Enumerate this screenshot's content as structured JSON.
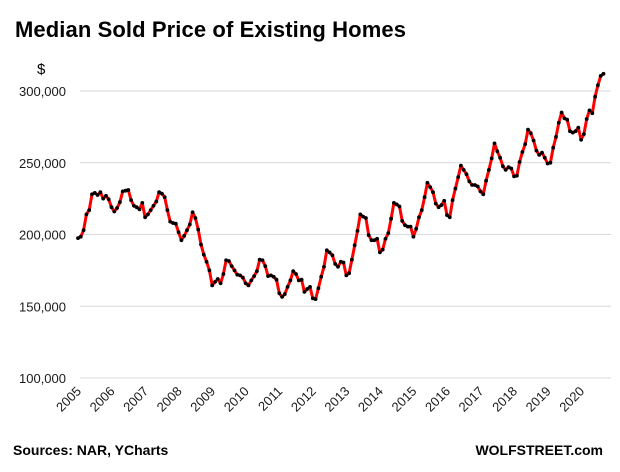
{
  "chart_data": {
    "type": "line",
    "title": "Median Sold Price of Existing Homes",
    "y_unit_label": "$",
    "ylim": [
      100000,
      300000
    ],
    "y_ticks": [
      100000,
      150000,
      200000,
      250000,
      300000
    ],
    "y_tick_labels": [
      "100,000",
      "150,000",
      "200,000",
      "250,000",
      "300,000"
    ],
    "x_tick_labels": [
      "2005",
      "2006",
      "2007",
      "2008",
      "2009",
      "2010",
      "2011",
      "2012",
      "2013",
      "2014",
      "2015",
      "2016",
      "2017",
      "2018",
      "2019",
      "2020"
    ],
    "grid": "horizontal",
    "legend": "none",
    "series": [
      {
        "line_color": "#ff0000",
        "marker_color": "#000000",
        "points": [
          [
            "2005-01",
            197500
          ],
          [
            "2005-02",
            198500
          ],
          [
            "2005-03",
            203000
          ],
          [
            "2005-04",
            214000
          ],
          [
            "2005-05",
            217000
          ],
          [
            "2005-06",
            228000
          ],
          [
            "2005-07",
            229000
          ],
          [
            "2005-08",
            227500
          ],
          [
            "2005-09",
            229500
          ],
          [
            "2005-10",
            225000
          ],
          [
            "2005-11",
            227000
          ],
          [
            "2005-12",
            224500
          ],
          [
            "2006-01",
            219000
          ],
          [
            "2006-02",
            216000
          ],
          [
            "2006-03",
            218500
          ],
          [
            "2006-04",
            222500
          ],
          [
            "2006-05",
            230000
          ],
          [
            "2006-06",
            230500
          ],
          [
            "2006-07",
            231000
          ],
          [
            "2006-08",
            224000
          ],
          [
            "2006-09",
            220000
          ],
          [
            "2006-10",
            219000
          ],
          [
            "2006-11",
            217500
          ],
          [
            "2006-12",
            222000
          ],
          [
            "2007-01",
            212000
          ],
          [
            "2007-02",
            214000
          ],
          [
            "2007-03",
            217000
          ],
          [
            "2007-04",
            220000
          ],
          [
            "2007-05",
            223000
          ],
          [
            "2007-06",
            229500
          ],
          [
            "2007-07",
            228500
          ],
          [
            "2007-08",
            226000
          ],
          [
            "2007-09",
            217000
          ],
          [
            "2007-10",
            209000
          ],
          [
            "2007-11",
            208000
          ],
          [
            "2007-12",
            207500
          ],
          [
            "2008-01",
            201500
          ],
          [
            "2008-02",
            196000
          ],
          [
            "2008-03",
            199000
          ],
          [
            "2008-04",
            203000
          ],
          [
            "2008-05",
            207000
          ],
          [
            "2008-06",
            215500
          ],
          [
            "2008-07",
            211500
          ],
          [
            "2008-08",
            203500
          ],
          [
            "2008-09",
            193000
          ],
          [
            "2008-10",
            186000
          ],
          [
            "2008-11",
            181000
          ],
          [
            "2008-12",
            175000
          ],
          [
            "2009-01",
            164500
          ],
          [
            "2009-02",
            167000
          ],
          [
            "2009-03",
            169000
          ],
          [
            "2009-04",
            166000
          ],
          [
            "2009-05",
            172500
          ],
          [
            "2009-06",
            182000
          ],
          [
            "2009-07",
            181500
          ],
          [
            "2009-08",
            178000
          ],
          [
            "2009-09",
            175000
          ],
          [
            "2009-10",
            172000
          ],
          [
            "2009-11",
            171500
          ],
          [
            "2009-12",
            170000
          ],
          [
            "2010-01",
            166000
          ],
          [
            "2010-02",
            164500
          ],
          [
            "2010-03",
            168000
          ],
          [
            "2010-04",
            171000
          ],
          [
            "2010-05",
            174500
          ],
          [
            "2010-06",
            182500
          ],
          [
            "2010-07",
            182000
          ],
          [
            "2010-08",
            178000
          ],
          [
            "2010-09",
            171000
          ],
          [
            "2010-10",
            171500
          ],
          [
            "2010-11",
            170500
          ],
          [
            "2010-12",
            168500
          ],
          [
            "2011-01",
            159000
          ],
          [
            "2011-02",
            156500
          ],
          [
            "2011-03",
            158500
          ],
          [
            "2011-04",
            163500
          ],
          [
            "2011-05",
            168000
          ],
          [
            "2011-06",
            174500
          ],
          [
            "2011-07",
            172500
          ],
          [
            "2011-08",
            168000
          ],
          [
            "2011-09",
            168500
          ],
          [
            "2011-10",
            160000
          ],
          [
            "2011-11",
            162000
          ],
          [
            "2011-12",
            163500
          ],
          [
            "2012-01",
            155500
          ],
          [
            "2012-02",
            155000
          ],
          [
            "2012-03",
            162500
          ],
          [
            "2012-04",
            170500
          ],
          [
            "2012-05",
            177500
          ],
          [
            "2012-06",
            189000
          ],
          [
            "2012-07",
            187500
          ],
          [
            "2012-08",
            185500
          ],
          [
            "2012-09",
            179500
          ],
          [
            "2012-10",
            177500
          ],
          [
            "2012-11",
            181000
          ],
          [
            "2012-12",
            180500
          ],
          [
            "2013-01",
            171500
          ],
          [
            "2013-02",
            173000
          ],
          [
            "2013-03",
            182500
          ],
          [
            "2013-04",
            192500
          ],
          [
            "2013-05",
            202500
          ],
          [
            "2013-06",
            214000
          ],
          [
            "2013-07",
            212500
          ],
          [
            "2013-08",
            211500
          ],
          [
            "2013-09",
            199500
          ],
          [
            "2013-10",
            196000
          ],
          [
            "2013-11",
            196000
          ],
          [
            "2013-12",
            197000
          ],
          [
            "2014-01",
            187500
          ],
          [
            "2014-02",
            189500
          ],
          [
            "2014-03",
            197000
          ],
          [
            "2014-04",
            201000
          ],
          [
            "2014-05",
            211000
          ],
          [
            "2014-06",
            222000
          ],
          [
            "2014-07",
            221000
          ],
          [
            "2014-08",
            219500
          ],
          [
            "2014-09",
            209500
          ],
          [
            "2014-10",
            206500
          ],
          [
            "2014-11",
            205500
          ],
          [
            "2014-12",
            205500
          ],
          [
            "2015-01",
            198500
          ],
          [
            "2015-02",
            204000
          ],
          [
            "2015-03",
            212000
          ],
          [
            "2015-04",
            217000
          ],
          [
            "2015-05",
            226000
          ],
          [
            "2015-06",
            236000
          ],
          [
            "2015-07",
            233000
          ],
          [
            "2015-08",
            229500
          ],
          [
            "2015-09",
            221500
          ],
          [
            "2015-10",
            219000
          ],
          [
            "2015-11",
            220500
          ],
          [
            "2015-12",
            223500
          ],
          [
            "2016-01",
            213500
          ],
          [
            "2016-02",
            212000
          ],
          [
            "2016-03",
            224000
          ],
          [
            "2016-04",
            232000
          ],
          [
            "2016-05",
            240000
          ],
          [
            "2016-06",
            248000
          ],
          [
            "2016-07",
            245000
          ],
          [
            "2016-08",
            242000
          ],
          [
            "2016-09",
            237000
          ],
          [
            "2016-10",
            234500
          ],
          [
            "2016-11",
            234500
          ],
          [
            "2016-12",
            233500
          ],
          [
            "2017-01",
            230000
          ],
          [
            "2017-02",
            228000
          ],
          [
            "2017-03",
            237500
          ],
          [
            "2017-04",
            245000
          ],
          [
            "2017-05",
            253000
          ],
          [
            "2017-06",
            263500
          ],
          [
            "2017-07",
            258000
          ],
          [
            "2017-08",
            253500
          ],
          [
            "2017-09",
            247500
          ],
          [
            "2017-10",
            245000
          ],
          [
            "2017-11",
            247000
          ],
          [
            "2017-12",
            246000
          ],
          [
            "2018-01",
            240500
          ],
          [
            "2018-02",
            241000
          ],
          [
            "2018-03",
            250500
          ],
          [
            "2018-04",
            257500
          ],
          [
            "2018-05",
            263000
          ],
          [
            "2018-06",
            273000
          ],
          [
            "2018-07",
            270500
          ],
          [
            "2018-08",
            265500
          ],
          [
            "2018-09",
            258500
          ],
          [
            "2018-10",
            255500
          ],
          [
            "2018-11",
            257000
          ],
          [
            "2018-12",
            253500
          ],
          [
            "2019-01",
            249500
          ],
          [
            "2019-02",
            250000
          ],
          [
            "2019-03",
            260500
          ],
          [
            "2019-04",
            268000
          ],
          [
            "2019-05",
            278000
          ],
          [
            "2019-06",
            285000
          ],
          [
            "2019-07",
            281000
          ],
          [
            "2019-08",
            280000
          ],
          [
            "2019-09",
            272000
          ],
          [
            "2019-10",
            271000
          ],
          [
            "2019-11",
            272000
          ],
          [
            "2019-12",
            274500
          ],
          [
            "2020-01",
            266000
          ],
          [
            "2020-02",
            270000
          ],
          [
            "2020-03",
            280500
          ],
          [
            "2020-04",
            286500
          ],
          [
            "2020-05",
            284500
          ],
          [
            "2020-06",
            296000
          ],
          [
            "2020-07",
            304000
          ],
          [
            "2020-08",
            310500
          ],
          [
            "2020-09",
            312000
          ]
        ]
      }
    ]
  },
  "footer": {
    "source": "Sources: NAR, YCharts",
    "watermark": "WOLFSTREET.com"
  }
}
